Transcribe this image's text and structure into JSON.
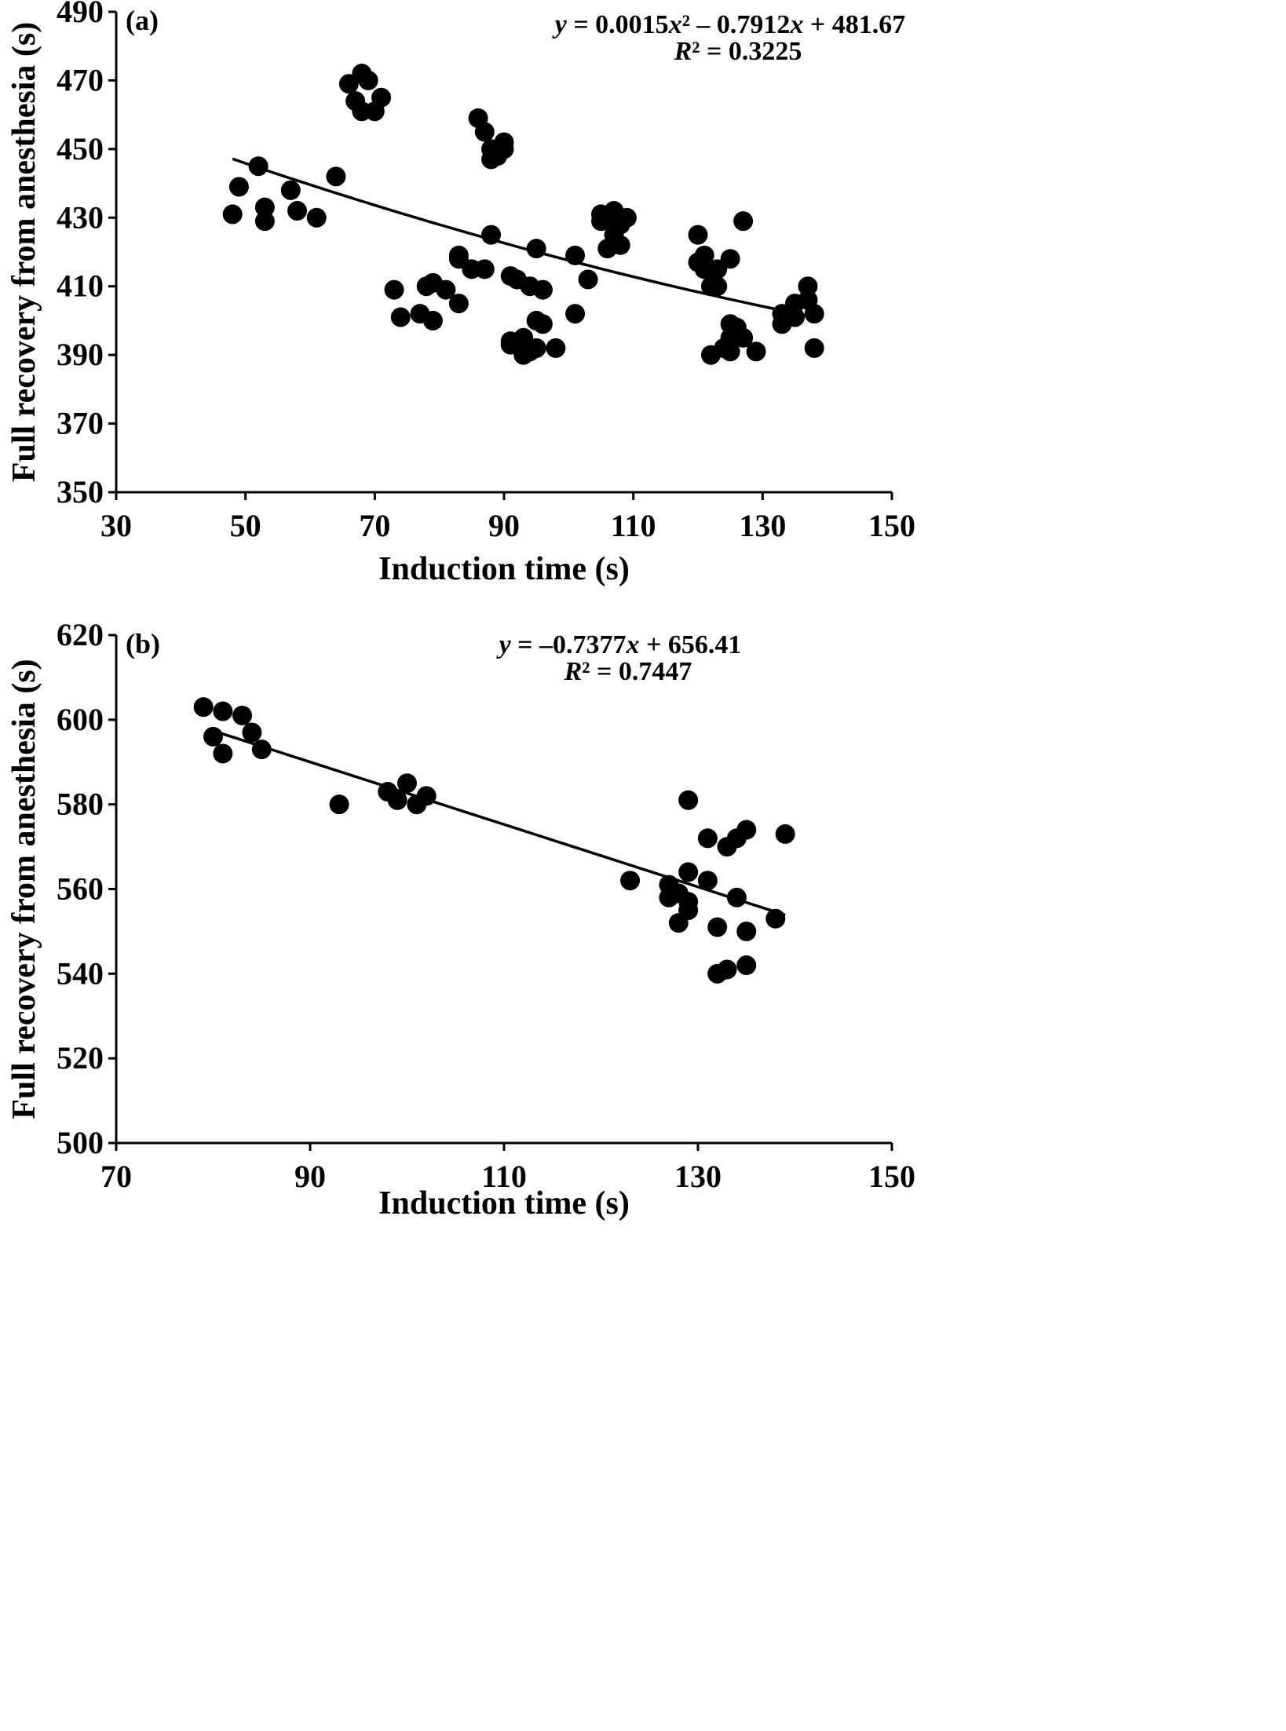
{
  "chart_data": [
    {
      "type": "scatter",
      "panel_label": "(a)",
      "xlabel": "Induction time (s)",
      "ylabel": "Full recovery from anesthesia (s)",
      "xlim": [
        30,
        150
      ],
      "ylim": [
        350,
        490
      ],
      "xticks": [
        30,
        50,
        70,
        90,
        110,
        130,
        150
      ],
      "yticks": [
        350,
        370,
        390,
        410,
        430,
        450,
        470,
        490
      ],
      "grid": false,
      "equation": {
        "line1": "y = 0.0015x² – 0.7912x + 481.67",
        "line2": "R² = 0.3225"
      },
      "trendline": {
        "kind": "polynomial",
        "coefficients": [
          0.0015,
          -0.7912,
          481.67
        ],
        "x_range": [
          48,
          138
        ]
      },
      "points": [
        [
          48,
          431
        ],
        [
          49,
          439
        ],
        [
          52,
          445
        ],
        [
          53,
          433
        ],
        [
          53,
          429
        ],
        [
          57,
          438
        ],
        [
          58,
          432
        ],
        [
          61,
          430
        ],
        [
          64,
          442
        ],
        [
          66,
          469
        ],
        [
          67,
          464
        ],
        [
          68,
          472
        ],
        [
          68,
          461
        ],
        [
          69,
          470
        ],
        [
          70,
          461
        ],
        [
          71,
          465
        ],
        [
          73,
          409
        ],
        [
          74,
          401
        ],
        [
          77,
          402
        ],
        [
          78,
          410
        ],
        [
          79,
          411
        ],
        [
          79,
          400
        ],
        [
          81,
          409
        ],
        [
          83,
          419
        ],
        [
          83,
          418
        ],
        [
          83,
          405
        ],
        [
          85,
          415
        ],
        [
          86,
          459
        ],
        [
          87,
          455
        ],
        [
          87,
          415
        ],
        [
          88,
          450
        ],
        [
          88,
          447
        ],
        [
          88,
          425
        ],
        [
          89,
          448
        ],
        [
          90,
          452
        ],
        [
          90,
          450
        ],
        [
          91,
          413
        ],
        [
          91,
          394
        ],
        [
          91,
          393
        ],
        [
          92,
          412
        ],
        [
          93,
          395
        ],
        [
          93,
          390
        ],
        [
          94,
          410
        ],
        [
          94,
          391
        ],
        [
          95,
          421
        ],
        [
          95,
          400
        ],
        [
          95,
          392
        ],
        [
          96,
          409
        ],
        [
          96,
          399
        ],
        [
          98,
          392
        ],
        [
          101,
          419
        ],
        [
          101,
          402
        ],
        [
          103,
          412
        ],
        [
          105,
          431
        ],
        [
          105,
          429
        ],
        [
          106,
          430
        ],
        [
          106,
          421
        ],
        [
          107,
          432
        ],
        [
          107,
          425
        ],
        [
          108,
          428
        ],
        [
          108,
          422
        ],
        [
          109,
          430
        ],
        [
          120,
          417
        ],
        [
          120,
          425
        ],
        [
          121,
          419
        ],
        [
          121,
          415
        ],
        [
          122,
          390
        ],
        [
          122,
          410
        ],
        [
          123,
          415
        ],
        [
          123,
          410
        ],
        [
          124,
          392
        ],
        [
          125,
          418
        ],
        [
          125,
          399
        ],
        [
          125,
          395
        ],
        [
          125,
          391
        ],
        [
          126,
          398
        ],
        [
          127,
          429
        ],
        [
          127,
          395
        ],
        [
          129,
          391
        ],
        [
          133,
          402
        ],
        [
          133,
          399
        ],
        [
          135,
          405
        ],
        [
          135,
          401
        ],
        [
          137,
          410
        ],
        [
          137,
          406
        ],
        [
          138,
          402
        ],
        [
          138,
          392
        ]
      ]
    },
    {
      "type": "scatter",
      "panel_label": "(b)",
      "xlabel": "Induction time (s)",
      "ylabel": "Full recovery from anesthesia (s)",
      "xlim": [
        70,
        150
      ],
      "ylim": [
        500,
        620
      ],
      "xticks": [
        70,
        90,
        110,
        130,
        150
      ],
      "yticks": [
        500,
        520,
        540,
        560,
        580,
        600,
        620
      ],
      "grid": false,
      "equation": {
        "line1": "y = –0.7377x + 656.41",
        "line2": "R² = 0.7447"
      },
      "trendline": {
        "kind": "linear",
        "coefficients": [
          -0.7377,
          656.41
        ],
        "x_range": [
          79.5,
          139
        ]
      },
      "points": [
        [
          79,
          603
        ],
        [
          80,
          596
        ],
        [
          81,
          602
        ],
        [
          81,
          592
        ],
        [
          83,
          601
        ],
        [
          84,
          597
        ],
        [
          85,
          593
        ],
        [
          93,
          580
        ],
        [
          98,
          583
        ],
        [
          99,
          581
        ],
        [
          100,
          585
        ],
        [
          101,
          580
        ],
        [
          102,
          582
        ],
        [
          123,
          562
        ],
        [
          127,
          561
        ],
        [
          127,
          558
        ],
        [
          128,
          552
        ],
        [
          128,
          559
        ],
        [
          129,
          581
        ],
        [
          129,
          564
        ],
        [
          129,
          557
        ],
        [
          129,
          555
        ],
        [
          131,
          572
        ],
        [
          131,
          562
        ],
        [
          132,
          551
        ],
        [
          132,
          540
        ],
        [
          133,
          570
        ],
        [
          133,
          541
        ],
        [
          134,
          572
        ],
        [
          134,
          558
        ],
        [
          135,
          574
        ],
        [
          135,
          550
        ],
        [
          135,
          542
        ],
        [
          138,
          553
        ],
        [
          139,
          573
        ]
      ]
    }
  ]
}
